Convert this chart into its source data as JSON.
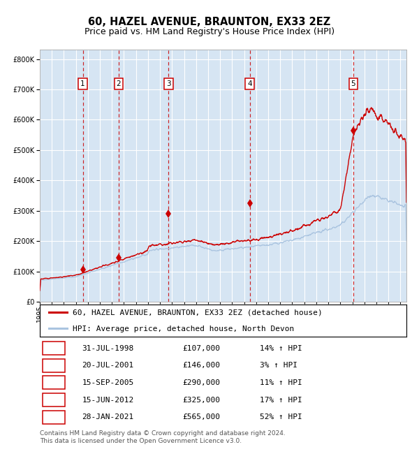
{
  "title": "60, HAZEL AVENUE, BRAUNTON, EX33 2EZ",
  "subtitle": "Price paid vs. HM Land Registry's House Price Index (HPI)",
  "footer1": "Contains HM Land Registry data © Crown copyright and database right 2024.",
  "footer2": "This data is licensed under the Open Government Licence v3.0.",
  "legend_label_red": "60, HAZEL AVENUE, BRAUNTON, EX33 2EZ (detached house)",
  "legend_label_blue": "HPI: Average price, detached house, North Devon",
  "transactions": [
    {
      "num": 1,
      "date": "31-JUL-1998",
      "price": 107000,
      "pct": "14%",
      "year": 1998.58
    },
    {
      "num": 2,
      "date": "20-JUL-2001",
      "price": 146000,
      "pct": "3%",
      "year": 2001.55
    },
    {
      "num": 3,
      "date": "15-SEP-2005",
      "price": 290000,
      "pct": "11%",
      "year": 2005.71
    },
    {
      "num": 4,
      "date": "15-JUN-2012",
      "price": 325000,
      "pct": "17%",
      "year": 2012.46
    },
    {
      "num": 5,
      "date": "28-JAN-2021",
      "price": 565000,
      "pct": "52%",
      "year": 2021.08
    }
  ],
  "year_start": 1995.0,
  "year_end": 2025.5,
  "ylim_max": 830000,
  "yticks": [
    0,
    100000,
    200000,
    300000,
    400000,
    500000,
    600000,
    700000,
    800000
  ],
  "bg_color": "#dce9f5",
  "grid_color": "#ffffff",
  "red_color": "#cc0000",
  "blue_color": "#aac4e0",
  "marker_color": "#cc0000",
  "dashed_color": "#cc0000",
  "title_fontsize": 10.5,
  "subtitle_fontsize": 9,
  "tick_fontsize": 7,
  "legend_fontsize": 8,
  "table_fontsize": 8,
  "footer_fontsize": 6.5
}
